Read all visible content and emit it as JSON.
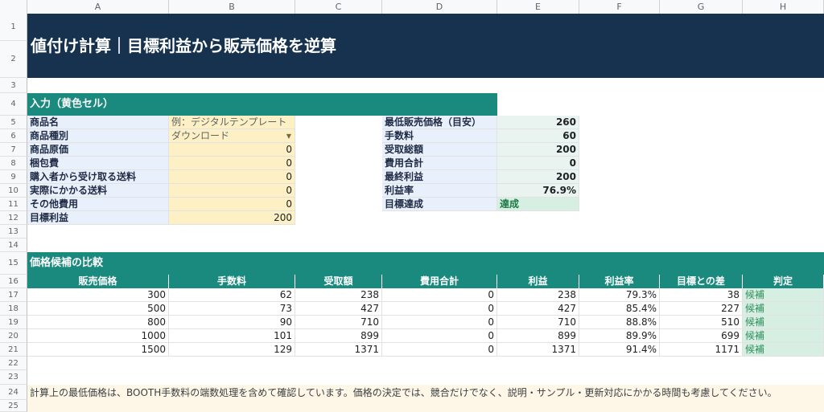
{
  "columns": [
    "A",
    "B",
    "C",
    "D",
    "E",
    "F",
    "G",
    "H"
  ],
  "rows": [
    "1",
    "2",
    "3",
    "4",
    "5",
    "6",
    "7",
    "8",
    "9",
    "10",
    "11",
    "12",
    "13",
    "14",
    "15",
    "16",
    "17",
    "18",
    "19",
    "20",
    "21",
    "22",
    "23",
    "24",
    "25"
  ],
  "title": "値付け計算｜目標利益から販売価格を逆算",
  "input_section": "入力（黄色セル）",
  "inputs": [
    {
      "label": "商品名",
      "value": "例：デジタルテンプレート"
    },
    {
      "label": "商品種別",
      "value": "ダウンロード"
    },
    {
      "label": "商品原価",
      "value": "0"
    },
    {
      "label": "梱包費",
      "value": "0"
    },
    {
      "label": "購入者から受け取る送料",
      "value": "0"
    },
    {
      "label": "実際にかかる送料",
      "value": "0"
    },
    {
      "label": "その他費用",
      "value": "0"
    },
    {
      "label": "目標利益",
      "value": "200"
    }
  ],
  "results": [
    {
      "label": "最低販売価格（目安）",
      "value": "260"
    },
    {
      "label": "手数料",
      "value": "60"
    },
    {
      "label": "受取総額",
      "value": "200"
    },
    {
      "label": "費用合計",
      "value": "0"
    },
    {
      "label": "最終利益",
      "value": "200"
    },
    {
      "label": "利益率",
      "value": "76.9%"
    },
    {
      "label": "目標達成",
      "value": "達成"
    }
  ],
  "compare_section": "価格候補の比較",
  "compare_headers": [
    "販売価格",
    "手数料",
    "受取額",
    "費用合計",
    "利益",
    "利益率",
    "目標との差",
    "判定"
  ],
  "compare_rows": [
    [
      "300",
      "62",
      "238",
      "0",
      "238",
      "79.3%",
      "38",
      "候補"
    ],
    [
      "500",
      "73",
      "427",
      "0",
      "427",
      "85.4%",
      "227",
      "候補"
    ],
    [
      "800",
      "90",
      "710",
      "0",
      "710",
      "88.8%",
      "510",
      "候補"
    ],
    [
      "1000",
      "101",
      "899",
      "0",
      "899",
      "89.9%",
      "699",
      "候補"
    ],
    [
      "1500",
      "129",
      "1371",
      "0",
      "1371",
      "91.4%",
      "1171",
      "候補"
    ]
  ],
  "note": "計算上の最低価格は、BOOTH手数料の端数処理を含めて確認しています。価格の決定では、競合だけでなく、説明・サンプル・更新対応にかかる時間も考慮してください。",
  "colors": {
    "title_bg": "#16324f",
    "section_bg": "#1a8a7e",
    "input_bg": "#fdf0c4",
    "label_bg": "#e8f0fb",
    "ok_bg": "#d6efe2",
    "note_bg": "#fef6e6"
  },
  "icons": {
    "dropdown": "dropdown-caret-icon"
  }
}
